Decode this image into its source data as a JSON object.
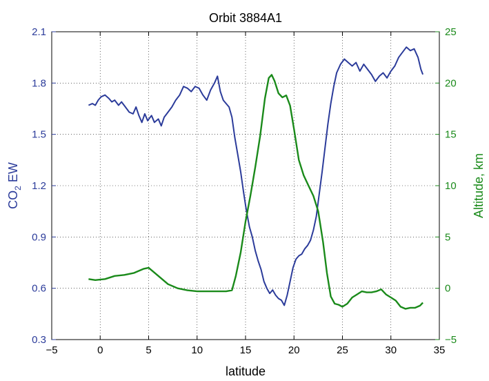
{
  "chart_data": {
    "type": "line",
    "title": "Orbit 3884A1",
    "xlabel": "latitude",
    "ylabel_left": {
      "main": "CO",
      "sub": "2",
      "rest": " EW"
    },
    "ylabel_right": "Altitude, km",
    "xlim": [
      -5,
      35
    ],
    "ylim_left": [
      0.3,
      2.1
    ],
    "ylim_right": [
      -5,
      25
    ],
    "x_ticks": [
      -5,
      0,
      5,
      10,
      15,
      20,
      25,
      30,
      35
    ],
    "x_tick_labels": [
      "−5",
      "0",
      "5",
      "10",
      "15",
      "20",
      "25",
      "30",
      "35"
    ],
    "y_left_ticks": [
      0.3,
      0.6,
      0.9,
      1.2,
      1.5,
      1.8,
      2.1
    ],
    "y_left_tick_labels": [
      "0.3",
      "0.6",
      "0.9",
      "1.2",
      "1.5",
      "1.8",
      "2.1"
    ],
    "y_right_ticks": [
      -5,
      0,
      5,
      10,
      15,
      20,
      25
    ],
    "y_right_tick_labels": [
      "−5",
      "0",
      "5",
      "10",
      "15",
      "20",
      "25"
    ],
    "grid": true,
    "colors": {
      "co2": "#2b3b9a",
      "altitude": "#1a8a1a"
    },
    "series": [
      {
        "axis": "left",
        "points": [
          [
            -1.2,
            1.67
          ],
          [
            -0.8,
            1.68
          ],
          [
            -0.5,
            1.67
          ],
          [
            -0.2,
            1.7
          ],
          [
            0.1,
            1.72
          ],
          [
            0.5,
            1.73
          ],
          [
            0.9,
            1.71
          ],
          [
            1.2,
            1.69
          ],
          [
            1.5,
            1.7
          ],
          [
            1.9,
            1.67
          ],
          [
            2.2,
            1.69
          ],
          [
            2.6,
            1.66
          ],
          [
            3.0,
            1.63
          ],
          [
            3.4,
            1.62
          ],
          [
            3.7,
            1.66
          ],
          [
            4.0,
            1.61
          ],
          [
            4.3,
            1.57
          ],
          [
            4.6,
            1.62
          ],
          [
            4.9,
            1.58
          ],
          [
            5.3,
            1.61
          ],
          [
            5.6,
            1.57
          ],
          [
            6.0,
            1.59
          ],
          [
            6.3,
            1.55
          ],
          [
            6.6,
            1.6
          ],
          [
            7.0,
            1.63
          ],
          [
            7.4,
            1.66
          ],
          [
            7.8,
            1.7
          ],
          [
            8.2,
            1.73
          ],
          [
            8.6,
            1.78
          ],
          [
            9.0,
            1.77
          ],
          [
            9.4,
            1.75
          ],
          [
            9.8,
            1.78
          ],
          [
            10.2,
            1.77
          ],
          [
            10.6,
            1.73
          ],
          [
            11.0,
            1.7
          ],
          [
            11.4,
            1.76
          ],
          [
            11.8,
            1.8
          ],
          [
            12.1,
            1.84
          ],
          [
            12.4,
            1.75
          ],
          [
            12.7,
            1.7
          ],
          [
            13.0,
            1.68
          ],
          [
            13.3,
            1.66
          ],
          [
            13.6,
            1.6
          ],
          [
            13.9,
            1.48
          ],
          [
            14.2,
            1.38
          ],
          [
            14.5,
            1.28
          ],
          [
            14.8,
            1.16
          ],
          [
            15.1,
            1.05
          ],
          [
            15.4,
            0.96
          ],
          [
            15.7,
            0.9
          ],
          [
            16.0,
            0.82
          ],
          [
            16.3,
            0.76
          ],
          [
            16.6,
            0.71
          ],
          [
            16.9,
            0.64
          ],
          [
            17.2,
            0.6
          ],
          [
            17.5,
            0.57
          ],
          [
            17.8,
            0.59
          ],
          [
            18.1,
            0.56
          ],
          [
            18.4,
            0.54
          ],
          [
            18.7,
            0.53
          ],
          [
            19.0,
            0.5
          ],
          [
            19.3,
            0.56
          ],
          [
            19.6,
            0.64
          ],
          [
            19.9,
            0.72
          ],
          [
            20.2,
            0.77
          ],
          [
            20.5,
            0.79
          ],
          [
            20.8,
            0.8
          ],
          [
            21.1,
            0.83
          ],
          [
            21.4,
            0.85
          ],
          [
            21.7,
            0.88
          ],
          [
            22.0,
            0.94
          ],
          [
            22.3,
            1.02
          ],
          [
            22.6,
            1.15
          ],
          [
            22.9,
            1.28
          ],
          [
            23.2,
            1.42
          ],
          [
            23.5,
            1.56
          ],
          [
            23.8,
            1.68
          ],
          [
            24.1,
            1.78
          ],
          [
            24.4,
            1.86
          ],
          [
            24.8,
            1.91
          ],
          [
            25.2,
            1.94
          ],
          [
            25.6,
            1.92
          ],
          [
            26.0,
            1.9
          ],
          [
            26.4,
            1.92
          ],
          [
            26.8,
            1.87
          ],
          [
            27.2,
            1.91
          ],
          [
            27.6,
            1.88
          ],
          [
            28.0,
            1.85
          ],
          [
            28.4,
            1.81
          ],
          [
            28.8,
            1.84
          ],
          [
            29.2,
            1.86
          ],
          [
            29.6,
            1.83
          ],
          [
            30.0,
            1.87
          ],
          [
            30.4,
            1.9
          ],
          [
            30.8,
            1.95
          ],
          [
            31.2,
            1.98
          ],
          [
            31.6,
            2.01
          ],
          [
            32.0,
            1.99
          ],
          [
            32.4,
            2.0
          ],
          [
            32.8,
            1.95
          ],
          [
            33.1,
            1.88
          ],
          [
            33.3,
            1.85
          ]
        ]
      },
      {
        "axis": "right",
        "points": [
          [
            -1.2,
            0.9
          ],
          [
            -0.5,
            0.8
          ],
          [
            0.5,
            0.9
          ],
          [
            1.5,
            1.2
          ],
          [
            2.5,
            1.3
          ],
          [
            3.5,
            1.5
          ],
          [
            4.5,
            1.9
          ],
          [
            5.0,
            2.0
          ],
          [
            6.0,
            1.2
          ],
          [
            7.0,
            0.4
          ],
          [
            8.0,
            0.0
          ],
          [
            9.0,
            -0.2
          ],
          [
            10.0,
            -0.3
          ],
          [
            11.0,
            -0.3
          ],
          [
            12.0,
            -0.3
          ],
          [
            13.0,
            -0.3
          ],
          [
            13.6,
            -0.2
          ],
          [
            14.0,
            1.2
          ],
          [
            14.5,
            3.5
          ],
          [
            15.0,
            6.5
          ],
          [
            15.5,
            9.0
          ],
          [
            16.0,
            11.8
          ],
          [
            16.5,
            14.8
          ],
          [
            17.0,
            18.5
          ],
          [
            17.4,
            20.5
          ],
          [
            17.7,
            20.8
          ],
          [
            18.0,
            20.2
          ],
          [
            18.4,
            19.0
          ],
          [
            18.8,
            18.6
          ],
          [
            19.2,
            18.8
          ],
          [
            19.6,
            17.8
          ],
          [
            20.0,
            15.5
          ],
          [
            20.5,
            12.5
          ],
          [
            21.0,
            11.0
          ],
          [
            21.5,
            10.0
          ],
          [
            22.0,
            9.0
          ],
          [
            22.5,
            7.5
          ],
          [
            23.0,
            4.5
          ],
          [
            23.4,
            1.5
          ],
          [
            23.8,
            -0.8
          ],
          [
            24.2,
            -1.5
          ],
          [
            24.6,
            -1.6
          ],
          [
            25.0,
            -1.8
          ],
          [
            25.5,
            -1.5
          ],
          [
            26.0,
            -0.9
          ],
          [
            26.5,
            -0.6
          ],
          [
            27.0,
            -0.3
          ],
          [
            27.5,
            -0.4
          ],
          [
            28.0,
            -0.4
          ],
          [
            28.5,
            -0.3
          ],
          [
            29.0,
            -0.1
          ],
          [
            29.5,
            -0.6
          ],
          [
            30.0,
            -0.9
          ],
          [
            30.5,
            -1.2
          ],
          [
            31.0,
            -1.8
          ],
          [
            31.5,
            -2.0
          ],
          [
            32.0,
            -1.9
          ],
          [
            32.5,
            -1.9
          ],
          [
            33.0,
            -1.7
          ],
          [
            33.3,
            -1.4
          ]
        ]
      }
    ]
  }
}
